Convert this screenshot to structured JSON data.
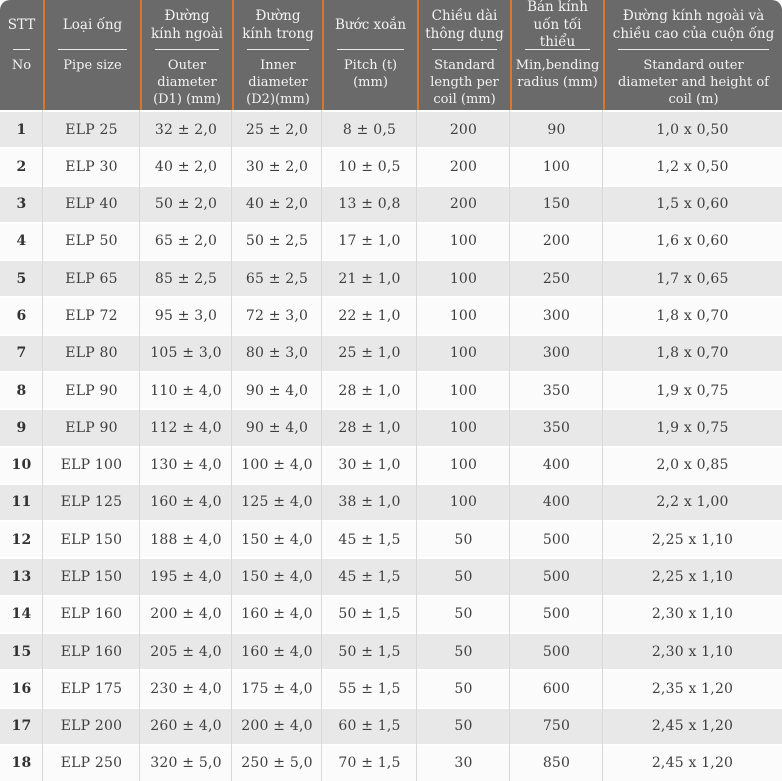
{
  "colors": {
    "header_bg": "#6a6a6a",
    "header_text": "#f2f2f2",
    "accent_orange_divider": "#d9772f",
    "row_odd_bg": "#e8e8e8",
    "row_even_bg": "#fbfbfb",
    "body_text": "#3f3f3f",
    "body_divider": "#d9d9d9"
  },
  "table": {
    "columns": [
      {
        "key": "no",
        "vi": "STT",
        "en": "No"
      },
      {
        "key": "size",
        "vi": "Loại ống",
        "en": "Pipe size"
      },
      {
        "key": "outer",
        "vi": "Đường kính ngoài",
        "en": "Outer diameter (D1) (mm)"
      },
      {
        "key": "inner",
        "vi": "Đường kính trong",
        "en": "Inner diameter (D2)(mm)"
      },
      {
        "key": "pitch",
        "vi": "Bước xoắn",
        "en": "Pitch (t)(mm)"
      },
      {
        "key": "length",
        "vi": "Chiều dài thông dụng",
        "en": "Standard length per coil (mm)"
      },
      {
        "key": "radius",
        "vi": "Bán kính uốn tối thiểu",
        "en": "Min,bending radius (mm)"
      },
      {
        "key": "coil",
        "vi": "Đường kính ngoài và chiều cao của cuộn ống",
        "en": "Standard outer diameter and height of coil (m)"
      }
    ],
    "rows": [
      [
        "1",
        "ELP 25",
        "32 ± 2,0",
        "25 ± 2,0",
        "8 ± 0,5",
        "200",
        "90",
        "1,0 x 0,50"
      ],
      [
        "2",
        "ELP 30",
        "40 ± 2,0",
        "30 ± 2,0",
        "10 ± 0,5",
        "200",
        "100",
        "1,2 x 0,50"
      ],
      [
        "3",
        "ELP 40",
        "50 ± 2,0",
        "40 ± 2,0",
        "13 ± 0,8",
        "200",
        "150",
        "1,5 x 0,60"
      ],
      [
        "4",
        "ELP 50",
        "65 ± 2,0",
        "50 ± 2,5",
        "17 ± 1,0",
        "100",
        "200",
        "1,6 x 0,60"
      ],
      [
        "5",
        "ELP 65",
        "85 ± 2,5",
        "65 ± 2,5",
        "21 ± 1,0",
        "100",
        "250",
        "1,7 x 0,65"
      ],
      [
        "6",
        "ELP 72",
        "95 ± 3,0",
        "72 ± 3,0",
        "22 ± 1,0",
        "100",
        "300",
        "1,8 x 0,70"
      ],
      [
        "7",
        "ELP 80",
        "105 ± 3,0",
        "80 ± 3,0",
        "25 ± 1,0",
        "100",
        "300",
        "1,8 x 0,70"
      ],
      [
        "8",
        "ELP 90",
        "110 ± 4,0",
        "90 ± 4,0",
        "28 ± 1,0",
        "100",
        "350",
        "1,9 x 0,75"
      ],
      [
        "9",
        "ELP 90",
        "112 ± 4,0",
        "90 ± 4,0",
        "28 ± 1,0",
        "100",
        "350",
        "1,9 x 0,75"
      ],
      [
        "10",
        "ELP 100",
        "130 ± 4,0",
        "100 ± 4,0",
        "30 ± 1,0",
        "100",
        "400",
        "2,0 x 0,85"
      ],
      [
        "11",
        "ELP 125",
        "160 ± 4,0",
        "125 ± 4,0",
        "38 ± 1,0",
        "100",
        "400",
        "2,2 x 1,00"
      ],
      [
        "12",
        "ELP 150",
        "188 ± 4,0",
        "150 ± 4,0",
        "45 ± 1,5",
        "50",
        "500",
        "2,25 x 1,10"
      ],
      [
        "13",
        "ELP 150",
        "195 ± 4,0",
        "150 ± 4,0",
        "45 ± 1,5",
        "50",
        "500",
        "2,25 x 1,10"
      ],
      [
        "14",
        "ELP 160",
        "200 ± 4,0",
        "160 ± 4,0",
        "50 ± 1,5",
        "50",
        "500",
        "2,30 x 1,10"
      ],
      [
        "15",
        "ELP 160",
        "205 ± 4,0",
        "160 ± 4,0",
        "50 ± 1,5",
        "50",
        "500",
        "2,30 x 1,10"
      ],
      [
        "16",
        "ELP 175",
        "230 ± 4,0",
        "175 ± 4,0",
        "55 ± 1,5",
        "50",
        "600",
        "2,35 x 1,20"
      ],
      [
        "17",
        "ELP 200",
        "260 ± 4,0",
        "200 ± 4,0",
        "60 ± 1,5",
        "50",
        "750",
        "2,45 x 1,20"
      ],
      [
        "18",
        "ELP 250",
        "320 ± 5,0",
        "250 ± 5,0",
        "70 ± 1,5",
        "30",
        "850",
        "2,45 x 1,20"
      ]
    ]
  }
}
